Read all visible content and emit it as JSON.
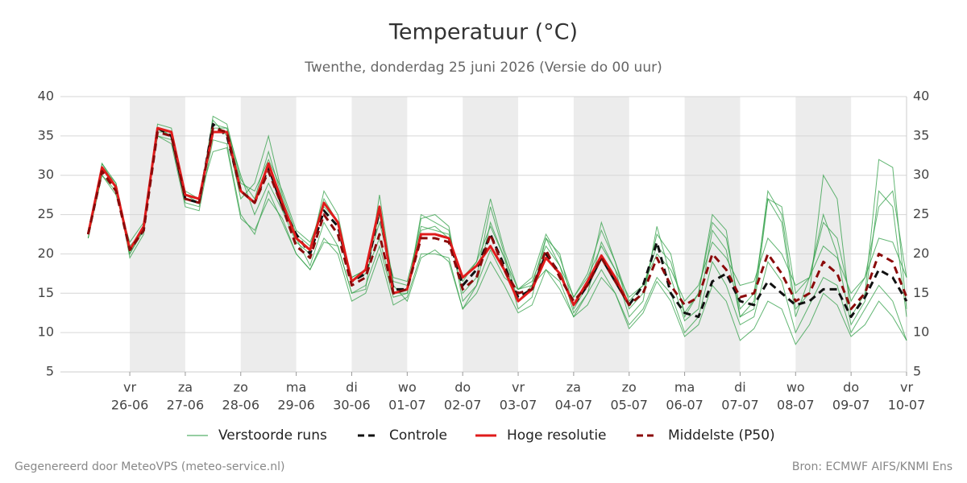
{
  "chart_data": {
    "type": "line",
    "title": "Temperatuur (°C)",
    "subtitle": "Twenthe, donderdag 25 juni 2026 (Versie do 00 uur)",
    "categories": [
      null,
      null,
      null,
      "vr",
      null,
      null,
      null,
      "za",
      null,
      null,
      null,
      "zo",
      null,
      null,
      null,
      "ma",
      null,
      null,
      null,
      "di",
      null,
      null,
      null,
      "wo",
      null,
      null,
      null,
      "do",
      null,
      null,
      null,
      "vr",
      null,
      null,
      null,
      "za",
      null,
      null,
      null,
      "zo",
      null,
      null,
      null,
      "ma",
      null,
      null,
      null,
      "di",
      null,
      null,
      null,
      "wo",
      null,
      null,
      null,
      "do",
      null,
      null,
      null,
      "vr"
    ],
    "dates": [
      null,
      null,
      null,
      "26-06",
      null,
      null,
      null,
      "27-06",
      null,
      null,
      null,
      "28-06",
      null,
      null,
      null,
      "29-06",
      null,
      null,
      null,
      "30-06",
      null,
      null,
      null,
      "01-07",
      null,
      null,
      null,
      "02-07",
      null,
      null,
      null,
      "03-07",
      null,
      null,
      null,
      "04-07",
      null,
      null,
      null,
      "05-07",
      null,
      null,
      null,
      "06-07",
      null,
      null,
      null,
      "07-07",
      null,
      null,
      null,
      "08-07",
      null,
      null,
      null,
      "09-07",
      null,
      null,
      null,
      "10-07"
    ],
    "ylim": [
      5,
      40
    ],
    "yticks": [
      5,
      10,
      15,
      20,
      25,
      30,
      35,
      40
    ],
    "y2lim": [
      5,
      40
    ],
    "y2ticks": [
      5,
      10,
      15,
      20,
      25,
      30,
      35,
      40
    ],
    "grid": true,
    "ensemble": {
      "name": "Verstoorde runs",
      "color": "#2e9e44",
      "members": [
        [
          22,
          31.5,
          29,
          19.5,
          22.5,
          36.5,
          36,
          26.5,
          26,
          37.5,
          36.5,
          29.5,
          27,
          33,
          27,
          22,
          18.5,
          24,
          21,
          15,
          16,
          21,
          14.5,
          15,
          24.5,
          25,
          23.5,
          14,
          16,
          24,
          19.5,
          13,
          14.5,
          22,
          18.5,
          12.5,
          15,
          21.5,
          18,
          12,
          14,
          23.5,
          17,
          11.5,
          13,
          23,
          20.5,
          12,
          13,
          27,
          24,
          12,
          17,
          25,
          20,
          11,
          14,
          28,
          26,
          12
        ],
        [
          22,
          30,
          27.5,
          21.5,
          24,
          35,
          34.5,
          28,
          27,
          33,
          33.5,
          24.5,
          23,
          27,
          24.5,
          20,
          18,
          21.5,
          21,
          15,
          15.5,
          27.5,
          16,
          14,
          19.5,
          20.5,
          19,
          13,
          16,
          20.5,
          17,
          15.5,
          16,
          18,
          16.5,
          12,
          15,
          18,
          15,
          11,
          13,
          17,
          15,
          10,
          12,
          19,
          16,
          11,
          12,
          19,
          16.5,
          10,
          13.5,
          17,
          16,
          10,
          13,
          16,
          14,
          9
        ],
        [
          23,
          31,
          28.5,
          20,
          23,
          35.5,
          35.5,
          27.5,
          26.5,
          37,
          35,
          27,
          29,
          35,
          27.5,
          22.5,
          21,
          27,
          24,
          17,
          18,
          24,
          17,
          16.5,
          23.5,
          23,
          22.5,
          16.5,
          19,
          27,
          20.5,
          15.5,
          17,
          22.5,
          19.5,
          14.5,
          17.5,
          23,
          19,
          14,
          16,
          21,
          19,
          12.5,
          15,
          24,
          22,
          13,
          15,
          27,
          26,
          15,
          17,
          24,
          22,
          14,
          17,
          26,
          28,
          17
        ],
        [
          22.5,
          30,
          28,
          20,
          23.5,
          35,
          34,
          26,
          25.5,
          34.5,
          34,
          25,
          22.5,
          28,
          24,
          20,
          18,
          22,
          20,
          14,
          15,
          20,
          13.5,
          14.5,
          20,
          20,
          19.5,
          13,
          15,
          19,
          16,
          12.5,
          13.5,
          18,
          15.5,
          12,
          13.5,
          17,
          15,
          10.5,
          12.5,
          16.5,
          14,
          9.5,
          11,
          16,
          14,
          9,
          10.5,
          14,
          13,
          8.5,
          11,
          15,
          13.5,
          9.5,
          11,
          14,
          12,
          9
        ],
        [
          22,
          31,
          29,
          20.5,
          23,
          36,
          35.5,
          27,
          26.5,
          36,
          36,
          29,
          28,
          32,
          28,
          23,
          21.5,
          26,
          24,
          17,
          18,
          25,
          16.5,
          16,
          23,
          23.5,
          22,
          17,
          19,
          23.5,
          19.5,
          15.5,
          16.5,
          21,
          18.5,
          14.5,
          17,
          21,
          18,
          14.5,
          16,
          20,
          18,
          14,
          16,
          21.5,
          19.5,
          16,
          16.5,
          22,
          20,
          16,
          17,
          21,
          19.5,
          15,
          17,
          22,
          21.5,
          17
        ],
        [
          22.5,
          31.5,
          28.5,
          21,
          23,
          36,
          35,
          27.5,
          27,
          36.5,
          36,
          30,
          25,
          29,
          25.5,
          21.5,
          20,
          28,
          25,
          16.5,
          17.5,
          22,
          15,
          15,
          25,
          24,
          23,
          15,
          17,
          26,
          20,
          14,
          16,
          22,
          20,
          13,
          16,
          24,
          19,
          13,
          15,
          22.5,
          20,
          12,
          15,
          25,
          23,
          12,
          14,
          28,
          25,
          13,
          15,
          30,
          27,
          12,
          15,
          32,
          31,
          13
        ]
      ]
    },
    "series": [
      {
        "name": "Controle",
        "color": "#111111",
        "dashed": true,
        "values": [
          22.5,
          30.5,
          28.5,
          20.5,
          23,
          36,
          35,
          27,
          26.5,
          36.5,
          35,
          28,
          26.5,
          31,
          26,
          22.5,
          20,
          25.5,
          23.5,
          16.5,
          17.5,
          25.5,
          15.5,
          15.5,
          22.5,
          22.5,
          22,
          16,
          18,
          22.5,
          18.5,
          14.5,
          15.5,
          20,
          17.5,
          13.5,
          16,
          19.5,
          16.5,
          13.5,
          16,
          21.5,
          15,
          12.5,
          12,
          16.5,
          17.5,
          14,
          13.5,
          16.5,
          15,
          13.5,
          14,
          15.5,
          15.5,
          12,
          14.5,
          18,
          17,
          14
        ]
      },
      {
        "name": "Hoge resolutie",
        "color": "#e01b1b",
        "dashed": false,
        "values": [
          22.5,
          31,
          28.5,
          20.5,
          23.5,
          36,
          35.5,
          27.5,
          27,
          35.5,
          35.5,
          28,
          26.5,
          31.5,
          26.5,
          22,
          20.5,
          26.5,
          24,
          16.5,
          18,
          26,
          15,
          15.5,
          22.5,
          22.5,
          22,
          17,
          18.5,
          21,
          18,
          14,
          15.5,
          19.5,
          17.5,
          13.5,
          16.5,
          19.8,
          17,
          13.5,
          null,
          null,
          null,
          null,
          null,
          null,
          null,
          null,
          null,
          null,
          null,
          null,
          null,
          null,
          null,
          null,
          null,
          null,
          null,
          null
        ]
      },
      {
        "name": "Middelste (P50)",
        "color": "#8b0a0a",
        "dashed": true,
        "values": [
          22.5,
          30.5,
          28,
          20.5,
          23,
          35.5,
          35,
          27,
          26.5,
          36,
          35.5,
          28,
          26.5,
          30.5,
          26,
          21,
          19.5,
          25,
          22.5,
          16,
          17,
          22.5,
          15,
          15.5,
          22,
          22,
          21.5,
          15.5,
          17,
          22.5,
          18,
          15,
          15.5,
          20.5,
          17,
          14,
          16,
          19.5,
          16.5,
          13.5,
          15,
          19.5,
          16,
          13.5,
          14.5,
          20,
          18,
          14.5,
          15,
          20,
          17.5,
          14,
          15,
          19,
          17.5,
          13,
          15,
          20,
          19,
          14.5
        ]
      }
    ]
  },
  "footer": {
    "left": "Gegenereerd door MeteoVPS (meteo-service.nl)",
    "right": "Bron: ECMWF AIFS/KNMI Ens"
  }
}
